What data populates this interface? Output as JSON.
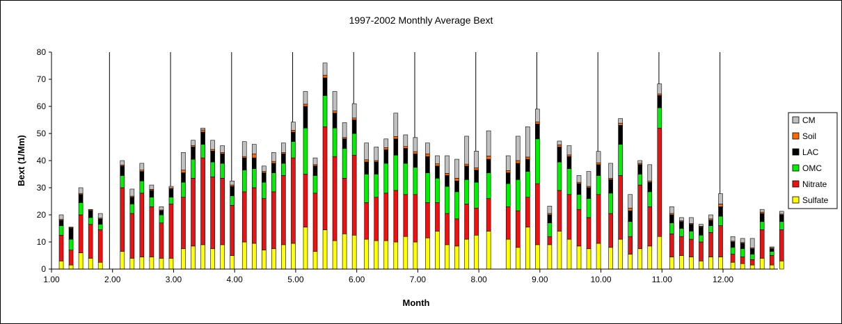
{
  "chart_data": {
    "type": "bar",
    "stacked": true,
    "title": "1997-2002 Monthly Average Bext",
    "xlabel": "Month",
    "ylabel": "Bext (1/Mm)",
    "xlim": [
      1.0,
      12.9
    ],
    "ylim": [
      0,
      80
    ],
    "x_ticks": [
      "1.00",
      "2.00",
      "3.00",
      "4.00",
      "5.00",
      "6.00",
      "7.00",
      "8.00",
      "9.00",
      "10.00",
      "11.00",
      "12.00"
    ],
    "y_ticks": [
      "0",
      "10",
      "20",
      "30",
      "40",
      "50",
      "60",
      "70",
      "80"
    ],
    "grid": "vertical lines at month boundaries",
    "legend_position": "right",
    "colors": {
      "Sulfate": "#ffff00",
      "Nitrate": "#ee1111",
      "OMC": "#00ee00",
      "LAC": "#000000",
      "Soil": "#ff6600",
      "CM": "#c0c0c0"
    },
    "legend": [
      "CM",
      "Soil",
      "LAC",
      "OMC",
      "Nitrate",
      "Sulfate"
    ],
    "x": [
      1.16,
      1.32,
      1.48,
      1.64,
      1.8,
      1.96,
      2.16,
      2.32,
      2.48,
      2.64,
      2.8,
      2.96,
      3.16,
      3.32,
      3.48,
      3.64,
      3.8,
      3.96,
      4.16,
      4.32,
      4.48,
      4.64,
      4.8,
      4.96,
      5.16,
      5.32,
      5.48,
      5.64,
      5.8,
      5.96,
      6.16,
      6.32,
      6.48,
      6.64,
      6.8,
      6.96,
      7.16,
      7.32,
      7.48,
      7.64,
      7.8,
      7.96,
      8.16,
      8.32,
      8.48,
      8.64,
      8.8,
      8.96,
      9.16,
      9.32,
      9.48,
      9.64,
      9.8,
      9.96,
      10.16,
      10.32,
      10.48,
      10.64,
      10.8,
      10.96,
      11.16,
      11.32,
      11.48,
      11.64,
      11.8,
      11.96,
      12.16,
      12.32,
      12.48,
      12.64,
      12.8,
      12.96
    ],
    "series": [
      {
        "name": "Sulfate",
        "values": [
          3,
          1.5,
          6,
          4,
          2.5,
          0,
          6.5,
          4,
          4.5,
          4.5,
          4,
          4,
          7.5,
          8.5,
          9,
          7.5,
          9,
          5,
          10,
          9.5,
          7,
          7.5,
          9,
          9.5,
          15.5,
          6.5,
          14.5,
          10.5,
          13,
          12.5,
          11,
          10.5,
          10.5,
          10,
          12,
          10,
          11.5,
          14,
          9,
          8.5,
          11,
          12.5,
          14,
          0,
          11,
          8,
          15.5,
          9,
          9,
          14,
          11,
          8.5,
          7.5,
          9.5,
          8,
          11,
          5.5,
          7.5,
          8.5,
          12,
          4.5,
          5,
          4.5,
          3,
          4.5,
          4.5,
          2.5,
          2,
          1.5,
          4,
          1.5,
          3
        ]
      },
      {
        "name": "Nitrate",
        "values": [
          9.5,
          5.5,
          14,
          12.5,
          12,
          0,
          23.5,
          16.5,
          23.5,
          18.5,
          13,
          20,
          19,
          25,
          32,
          26.5,
          24.5,
          18.5,
          18.5,
          20.5,
          19,
          21,
          25.5,
          31.5,
          19.5,
          21.5,
          38,
          31,
          20.5,
          29.5,
          13.5,
          16,
          17.5,
          19,
          15.5,
          17.5,
          13,
          10.5,
          11.5,
          10,
          13,
          10,
          12,
          0,
          12,
          13.5,
          11,
          22.5,
          3,
          15,
          16.5,
          13.5,
          11.5,
          18,
          12.5,
          23.5,
          6.5,
          23.5,
          14.5,
          40,
          8.5,
          7,
          6.5,
          7,
          9,
          11.5,
          3,
          2.5,
          2,
          10.5,
          3.5,
          11.5
        ]
      },
      {
        "name": "OMC",
        "values": [
          3.5,
          4,
          4.5,
          2.5,
          2,
          0,
          4.5,
          3.5,
          4.5,
          3.5,
          3,
          2.5,
          5.5,
          7,
          5,
          5.5,
          5.5,
          3.5,
          8,
          7,
          6,
          7,
          4.5,
          6,
          17,
          6.5,
          11.5,
          10.5,
          11,
          8,
          10.5,
          8.5,
          11,
          13,
          11.5,
          10,
          11,
          9,
          10,
          10,
          9,
          9.5,
          9.5,
          0,
          8.5,
          11.5,
          9.5,
          16.5,
          5,
          10.5,
          9.5,
          5.5,
          7,
          7,
          7.5,
          11.5,
          5.5,
          4,
          5.5,
          7.5,
          4,
          3,
          3,
          2.5,
          2.5,
          3.5,
          2.5,
          3,
          2,
          3,
          1.5,
          3
        ]
      },
      {
        "name": "LAC",
        "values": [
          2,
          4,
          3,
          2.5,
          2,
          0,
          3.5,
          2.5,
          3.5,
          2.5,
          1.5,
          3,
          3.5,
          4.5,
          4.5,
          4,
          3.5,
          3.5,
          4.5,
          4,
          3.5,
          3.5,
          3.5,
          3.5,
          8,
          3.5,
          6.5,
          5.5,
          3.5,
          5,
          4.5,
          4.5,
          5,
          6,
          5.5,
          5,
          6,
          4.5,
          4,
          4,
          5,
          4.5,
          5,
          0,
          4,
          6,
          4.5,
          5.5,
          3,
          5.5,
          4.5,
          4,
          4,
          4,
          5,
          7,
          4,
          3.5,
          3.5,
          4.5,
          3,
          2.5,
          2.5,
          3,
          2,
          3.5,
          2,
          2,
          2,
          3,
          1,
          2.5
        ]
      },
      {
        "name": "Soil",
        "values": [
          0.3,
          0.3,
          0.4,
          0.3,
          0.3,
          0,
          0.4,
          0.4,
          0.5,
          0.4,
          0.3,
          0.4,
          1,
          0.5,
          0.8,
          0.6,
          0.5,
          0.5,
          0.5,
          1.5,
          0.5,
          0.7,
          0.5,
          0.7,
          0.8,
          0.5,
          1,
          0.8,
          0.5,
          0.7,
          0.8,
          0.5,
          0.8,
          0.9,
          0.7,
          0.8,
          1,
          0.8,
          0.8,
          1,
          0.7,
          0.8,
          1.2,
          0,
          0.8,
          1,
          0.8,
          0.8,
          0.5,
          0.8,
          0.6,
          0.5,
          0.5,
          0.7,
          0.5,
          0.8,
          1,
          0.5,
          0.5,
          0.6,
          0.5,
          0.3,
          0.3,
          0.3,
          0.5,
          1,
          0.3,
          0.3,
          0.3,
          0.5,
          0.3,
          0.3
        ]
      },
      {
        "name": "CM",
        "values": [
          1.7,
          0.2,
          2.1,
          0.2,
          1.7,
          0,
          1.6,
          2.6,
          2.5,
          1.6,
          1.2,
          0.6,
          6.5,
          2,
          0.7,
          3.4,
          2.5,
          1.5,
          5.5,
          3.5,
          2,
          3.3,
          3.5,
          3,
          4.7,
          2.5,
          4.5,
          7.2,
          5.5,
          5.3,
          6.2,
          5,
          3.2,
          8.6,
          4.3,
          5.2,
          4,
          3,
          6.5,
          7,
          10.3,
          6.2,
          9.3,
          0,
          5.5,
          9,
          11.2,
          4.7,
          2.7,
          1.4,
          3.4,
          2.5,
          5.5,
          4.2,
          5.5,
          1.7,
          5,
          1,
          6,
          3.7,
          2.5,
          1.2,
          2.2,
          0.7,
          1.5,
          3.8,
          1.7,
          1.5,
          3.5,
          1,
          0.4,
          1
        ]
      }
    ]
  }
}
